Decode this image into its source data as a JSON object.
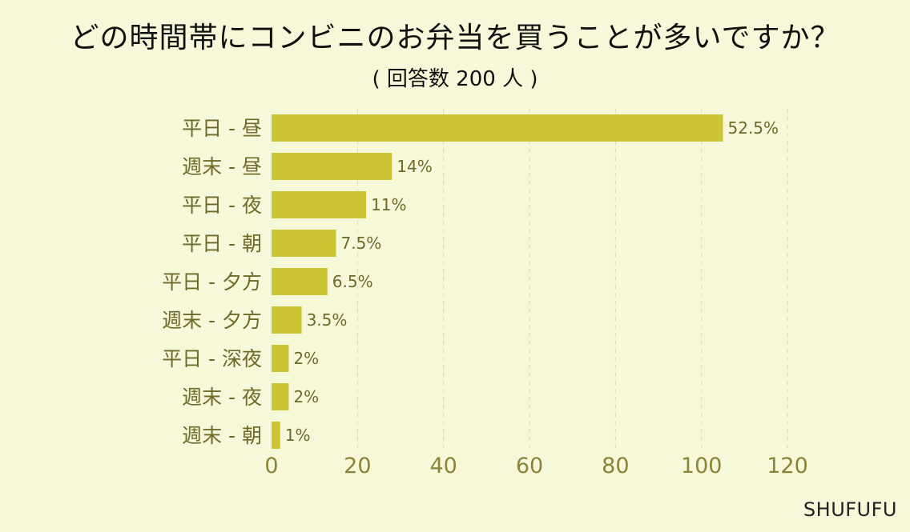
{
  "title": "どの時間帯にコンビニのお弁当を買うことが多いですか？",
  "subtitle": "( 回答数 200 人 )",
  "brand": "SHUFUFU",
  "chart_data": {
    "type": "bar",
    "orientation": "horizontal",
    "title": "どの時間帯にコンビニのお弁当を買うことが多いですか？",
    "subtitle": "( 回答数 200 人 )",
    "categories": [
      "平日 - 昼",
      "週末 - 昼",
      "平日 - 夜",
      "平日 - 朝",
      "平日 - 夕方",
      "週末 - 夕方",
      "平日 - 深夜",
      "週末 - 夜",
      "週末 - 朝"
    ],
    "values": [
      105,
      28,
      22,
      15,
      13,
      7,
      4,
      4,
      2
    ],
    "value_labels": [
      "52.5%",
      "14%",
      "11%",
      "7.5%",
      "6.5%",
      "3.5%",
      "2%",
      "2%",
      "1%"
    ],
    "xlim": [
      0,
      120
    ],
    "xticks": [
      0,
      20,
      40,
      60,
      80,
      100,
      120
    ],
    "grid": true,
    "bar_color": "#cbc433",
    "background": "#f7f7d9"
  }
}
